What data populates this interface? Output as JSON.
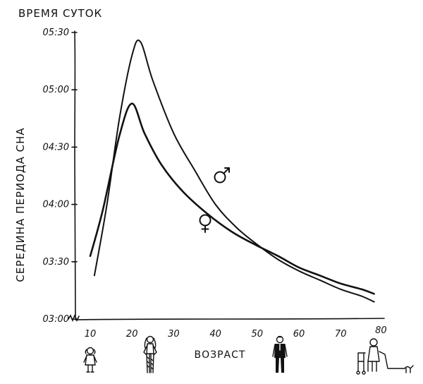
{
  "chart_data": {
    "type": "line",
    "title": "ВРЕМЯ СУТОК",
    "ylabel": "СЕРЕДИНА ПЕРИОДА СНА",
    "xlabel": "ВОЗРАСТ",
    "x_ticks": [
      10,
      20,
      30,
      40,
      50,
      60,
      70,
      80
    ],
    "y_ticks": [
      "03:00",
      "03:30",
      "04:00",
      "04:30",
      "05:00",
      "05:30"
    ],
    "xlim": [
      8,
      80
    ],
    "ylim_hours": [
      3.0,
      5.5
    ],
    "series": [
      {
        "name": "male",
        "symbol": "♂",
        "points": [
          [
            11,
            3.38
          ],
          [
            14,
            4.0
          ],
          [
            17,
            4.75
          ],
          [
            20,
            5.3
          ],
          [
            22,
            5.42
          ],
          [
            25,
            5.08
          ],
          [
            30,
            4.62
          ],
          [
            35,
            4.3
          ],
          [
            40,
            4.0
          ],
          [
            45,
            3.8
          ],
          [
            50,
            3.65
          ],
          [
            55,
            3.52
          ],
          [
            60,
            3.42
          ],
          [
            65,
            3.34
          ],
          [
            70,
            3.26
          ],
          [
            75,
            3.2
          ],
          [
            78,
            3.15
          ]
        ]
      },
      {
        "name": "female",
        "symbol": "♀",
        "points": [
          [
            10,
            3.55
          ],
          [
            13,
            3.95
          ],
          [
            17,
            4.6
          ],
          [
            20,
            4.88
          ],
          [
            23,
            4.62
          ],
          [
            27,
            4.35
          ],
          [
            32,
            4.12
          ],
          [
            38,
            3.92
          ],
          [
            44,
            3.76
          ],
          [
            50,
            3.64
          ],
          [
            55,
            3.55
          ],
          [
            60,
            3.45
          ],
          [
            65,
            3.38
          ],
          [
            70,
            3.31
          ],
          [
            75,
            3.26
          ],
          [
            78,
            3.22
          ]
        ]
      }
    ],
    "age_figures": [
      "child",
      "young-woman",
      "man-in-suit",
      "elderly-woman-with-walker"
    ],
    "grid": false
  }
}
